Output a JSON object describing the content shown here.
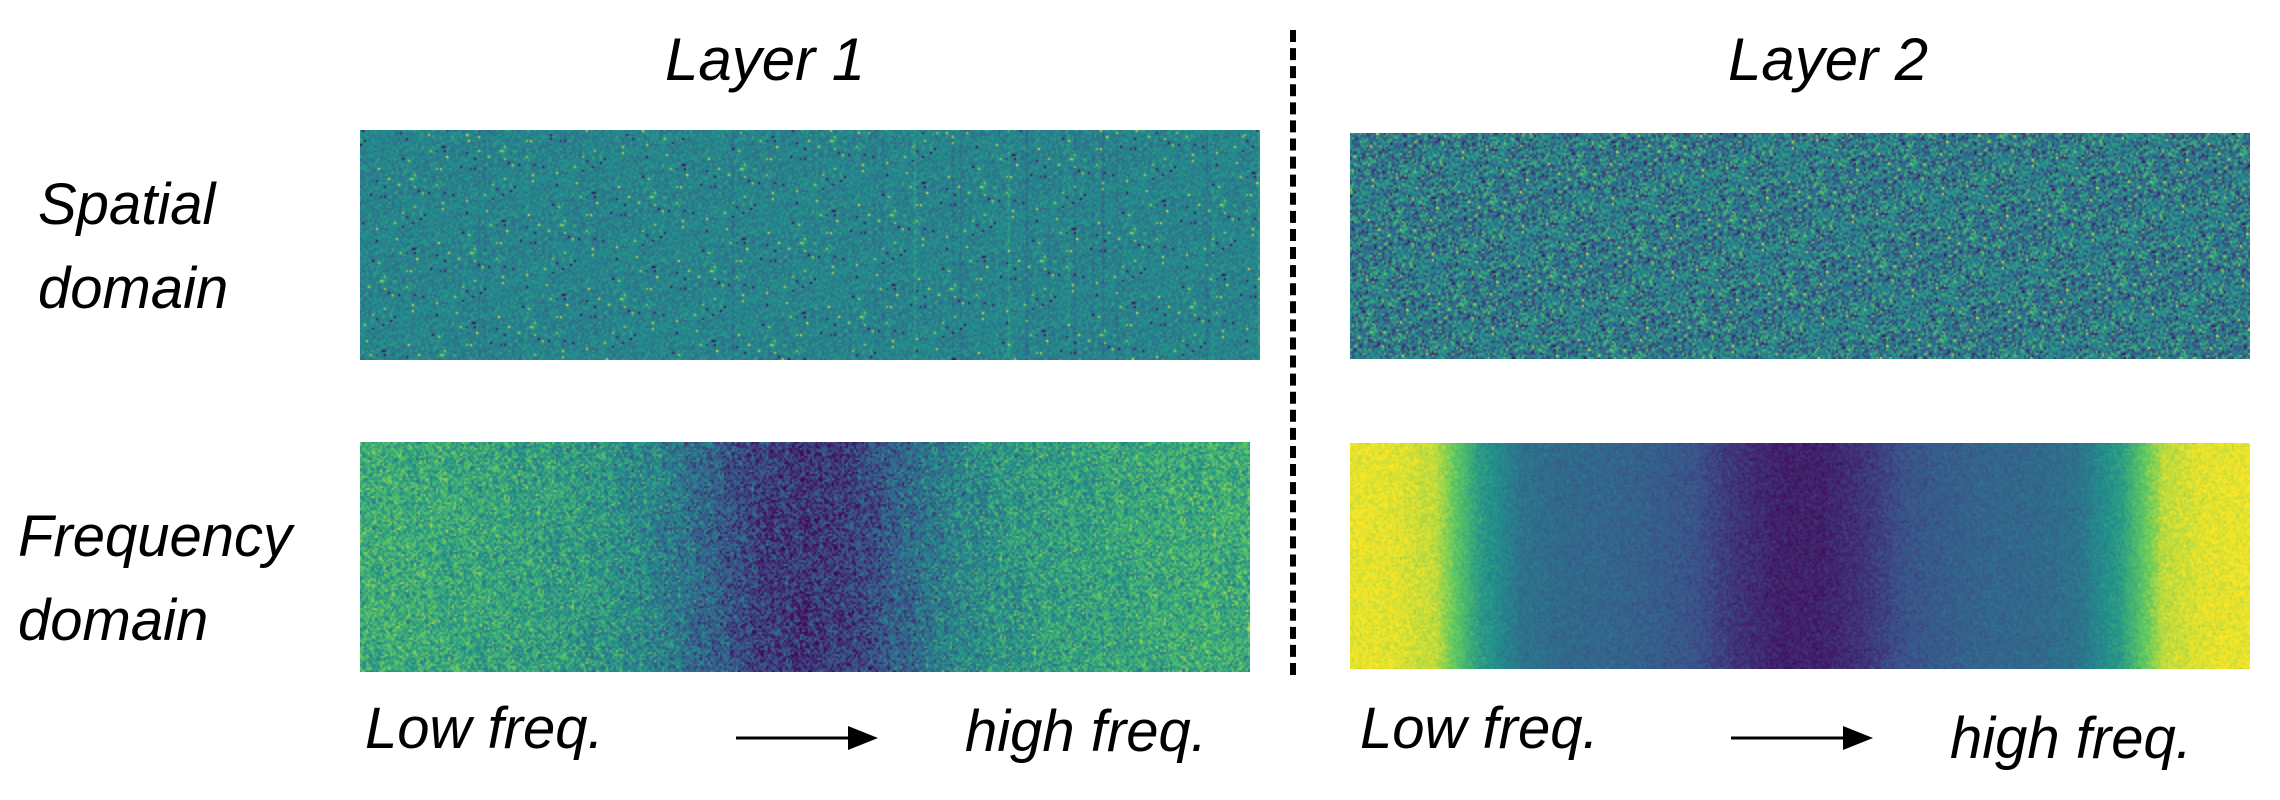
{
  "titles": {
    "layer1": "Layer 1",
    "layer2": "Layer 2"
  },
  "row_labels": {
    "spatial": [
      "Spatial",
      "domain"
    ],
    "frequency": [
      "Frequency",
      "domain"
    ]
  },
  "axis_labels": {
    "left_low": "Low freq.",
    "left_high": "high freq.",
    "right_low": "Low freq.",
    "right_high": "high freq."
  },
  "colormap": {
    "name": "viridis",
    "stops": [
      "#440154",
      "#3b528b",
      "#21918c",
      "#5ec962",
      "#fde725"
    ]
  },
  "panels": {
    "layer1_spatial": {
      "kind": "noise",
      "mean": 0.45,
      "spread": 0.12,
      "column_streaks": true
    },
    "layer2_spatial": {
      "kind": "noise",
      "mean": 0.42,
      "spread": 0.3,
      "column_streaks": false
    },
    "layer1_frequency": {
      "kind": "profile",
      "profile": [
        0.62,
        0.62,
        0.6,
        0.58,
        0.56,
        0.52,
        0.45,
        0.33,
        0.2,
        0.16,
        0.2,
        0.33,
        0.45,
        0.52,
        0.56,
        0.58,
        0.6,
        0.62,
        0.62
      ],
      "noise": 0.22
    },
    "layer2_frequency": {
      "kind": "profile",
      "profile": [
        0.97,
        0.96,
        0.9,
        0.55,
        0.38,
        0.34,
        0.33,
        0.3,
        0.26,
        0.16,
        0.1,
        0.1,
        0.16,
        0.26,
        0.3,
        0.33,
        0.34,
        0.38,
        0.55,
        0.9,
        0.96,
        0.97
      ],
      "noise": 0.07
    }
  }
}
